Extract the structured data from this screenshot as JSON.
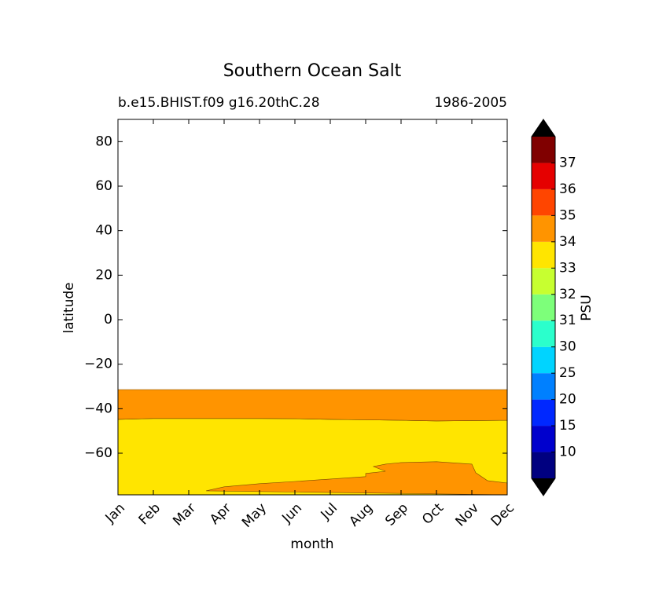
{
  "chart_data": {
    "type": "contourf",
    "title": "Southern Ocean Salt",
    "subtitle_left": "b.e15.BHIST.f09 g16.20thC.28",
    "subtitle_right": "1986-2005",
    "xlabel": "month",
    "ylabel": "latitude",
    "xlim": [
      0,
      11
    ],
    "ylim": [
      -78.7,
      90
    ],
    "xticks": [
      {
        "value": 0,
        "label": "Jan"
      },
      {
        "value": 1,
        "label": "Feb"
      },
      {
        "value": 2,
        "label": "Mar"
      },
      {
        "value": 3,
        "label": "Apr"
      },
      {
        "value": 4,
        "label": "May"
      },
      {
        "value": 5,
        "label": "Jun"
      },
      {
        "value": 6,
        "label": "Jul"
      },
      {
        "value": 7,
        "label": "Aug"
      },
      {
        "value": 8,
        "label": "Sep"
      },
      {
        "value": 9,
        "label": "Oct"
      },
      {
        "value": 10,
        "label": "Nov"
      },
      {
        "value": 11,
        "label": "Dec"
      }
    ],
    "yticks": [
      {
        "value": -60,
        "label": "−60"
      },
      {
        "value": -40,
        "label": "−40"
      },
      {
        "value": -20,
        "label": "−20"
      },
      0,
      20,
      40,
      60,
      80
    ],
    "regions": [
      {
        "color": "#ffe500",
        "x": [
          0,
          1,
          2,
          3,
          4,
          5,
          6,
          7,
          8,
          9,
          10,
          11,
          11,
          0
        ],
        "y": [
          -44.8,
          -44.4,
          -44.4,
          -44.4,
          -44.4,
          -44.5,
          -44.8,
          -45,
          -45.2,
          -45.5,
          -45.3,
          -45.2,
          -78.7,
          -78.7
        ]
      },
      {
        "color": "#ff9400",
        "x": [
          0,
          11,
          11,
          10,
          9,
          8,
          7,
          6,
          5,
          4,
          3,
          2,
          1,
          0
        ],
        "y": [
          -31.4,
          -31.4,
          -45.2,
          -45.3,
          -45.5,
          -45.2,
          -45,
          -44.8,
          -44.5,
          -44.4,
          -44.4,
          -44.4,
          -44.4,
          -44.8
        ]
      },
      {
        "color": "#ff9400",
        "x": [
          2.49,
          3,
          4,
          5,
          6,
          7,
          7,
          7.56,
          7.22,
          7.56,
          8,
          9,
          10,
          10.11,
          10.44,
          11,
          11
        ],
        "y": [
          -76.9,
          -75.1,
          -73.7,
          -72.7,
          -71.6,
          -70.5,
          -69.1,
          -68.1,
          -66,
          -64.9,
          -64.2,
          -63.8,
          -64.9,
          -68.8,
          -72.3,
          -73.4,
          -78.7
        ]
      }
    ],
    "colorbar": {
      "label": "PSU",
      "levels": [
        10,
        15,
        20,
        25,
        30,
        31,
        32,
        33,
        34,
        35,
        36,
        37
      ],
      "colors": [
        "#000080",
        "#0000cd",
        "#0028ff",
        "#0080ff",
        "#00d4ff",
        "#2bffcc",
        "#7dff7a",
        "#c7ff30",
        "#ffe500",
        "#ff9400",
        "#ff4500",
        "#e50000",
        "#800000"
      ],
      "extend_color": "#000000"
    }
  }
}
